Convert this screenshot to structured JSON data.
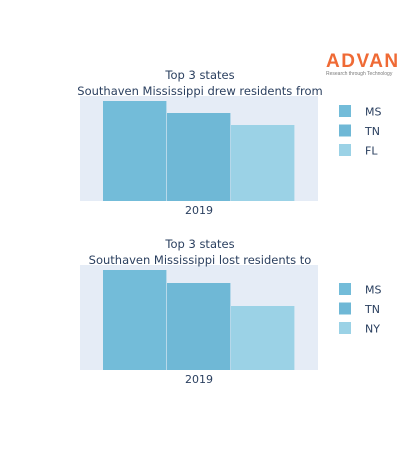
{
  "brand": {
    "name": "ADVAN",
    "tagline": "Research through Technology"
  },
  "colors": {
    "plot_bg": "#e5ecf6",
    "text": "#2a3f5f",
    "brand": "#ef6a35"
  },
  "chart_data": [
    {
      "type": "bar",
      "title": "Top 3 states",
      "subtitle": "Southaven Mississippi drew residents from",
      "categories": [
        "2019"
      ],
      "series": [
        {
          "name": "MS",
          "values": [
            100
          ],
          "color": "#73bcd9"
        },
        {
          "name": "TN",
          "values": [
            88
          ],
          "color": "#6fb8d6"
        },
        {
          "name": "FL",
          "values": [
            76
          ],
          "color": "#9bd2e6"
        }
      ],
      "ylim": [
        0,
        105
      ],
      "grid": false,
      "legend": "right"
    },
    {
      "type": "bar",
      "title": "Top 3 states",
      "subtitle": "Southaven Mississippi lost residents to",
      "categories": [
        "2019"
      ],
      "series": [
        {
          "name": "MS",
          "values": [
            100
          ],
          "color": "#73bcd9"
        },
        {
          "name": "TN",
          "values": [
            87
          ],
          "color": "#6fb8d6"
        },
        {
          "name": "NY",
          "values": [
            64
          ],
          "color": "#9bd2e6"
        }
      ],
      "ylim": [
        0,
        105
      ],
      "grid": false,
      "legend": "right"
    }
  ]
}
